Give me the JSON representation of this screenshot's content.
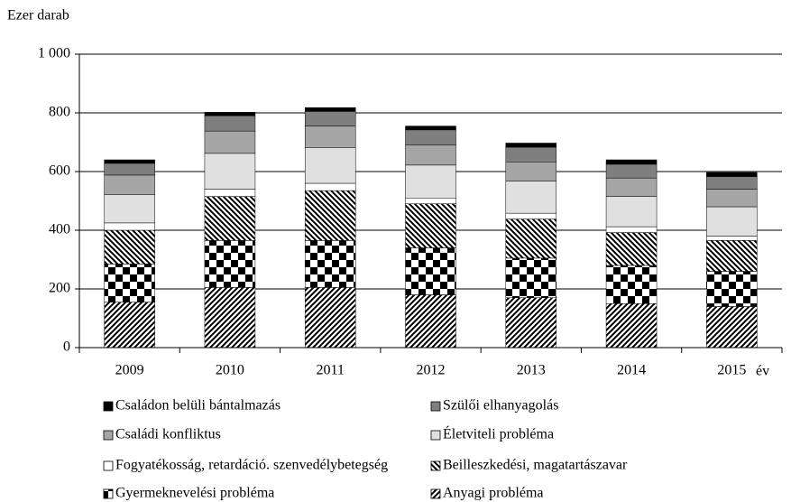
{
  "chart_data": {
    "type": "stacked_bar",
    "y_axis_label": "Ezer darab",
    "x_axis_label": "év",
    "categories": [
      "2009",
      "2010",
      "2011",
      "2012",
      "2013",
      "2014",
      "2015"
    ],
    "ylim": [
      0,
      1000
    ],
    "yticks": [
      0,
      200,
      400,
      600,
      800,
      {
        "value": 1000,
        "label": "1 000"
      }
    ],
    "grid": true,
    "series": [
      {
        "name": "Anyagi probléma",
        "color": "#000000",
        "pattern": "diagonal-up",
        "values": [
          155,
          205,
          205,
          180,
          170,
          150,
          140
        ]
      },
      {
        "name": "Gyermeknevelési probléma",
        "color": "#000000",
        "pattern": "checker",
        "values": [
          130,
          160,
          160,
          160,
          135,
          130,
          120
        ]
      },
      {
        "name": "Beilleszkedési, magatartászavar",
        "color": "#000000",
        "pattern": "diagonal-down",
        "values": [
          115,
          150,
          170,
          150,
          133,
          112,
          105
        ]
      },
      {
        "name": "Fogyatékosság, retardáció. szenvedélybetegség",
        "color": "#ffffff",
        "values": [
          25,
          25,
          25,
          20,
          20,
          20,
          15
        ]
      },
      {
        "name": "Életviteli probléma",
        "color": "#e0e0e0",
        "values": [
          97,
          122,
          122,
          112,
          110,
          103,
          100
        ]
      },
      {
        "name": "Családi konfliktus",
        "color": "#a6a6a6",
        "values": [
          66,
          76,
          73,
          68,
          65,
          63,
          60
        ]
      },
      {
        "name": "Szülői elhanyagolás",
        "color": "#7f7f7f",
        "values": [
          40,
          52,
          50,
          52,
          50,
          47,
          43
        ]
      },
      {
        "name": "Családon belüli bántalmazás",
        "color": "#000000",
        "values": [
          12,
          12,
          13,
          13,
          14,
          15,
          14
        ]
      }
    ]
  }
}
